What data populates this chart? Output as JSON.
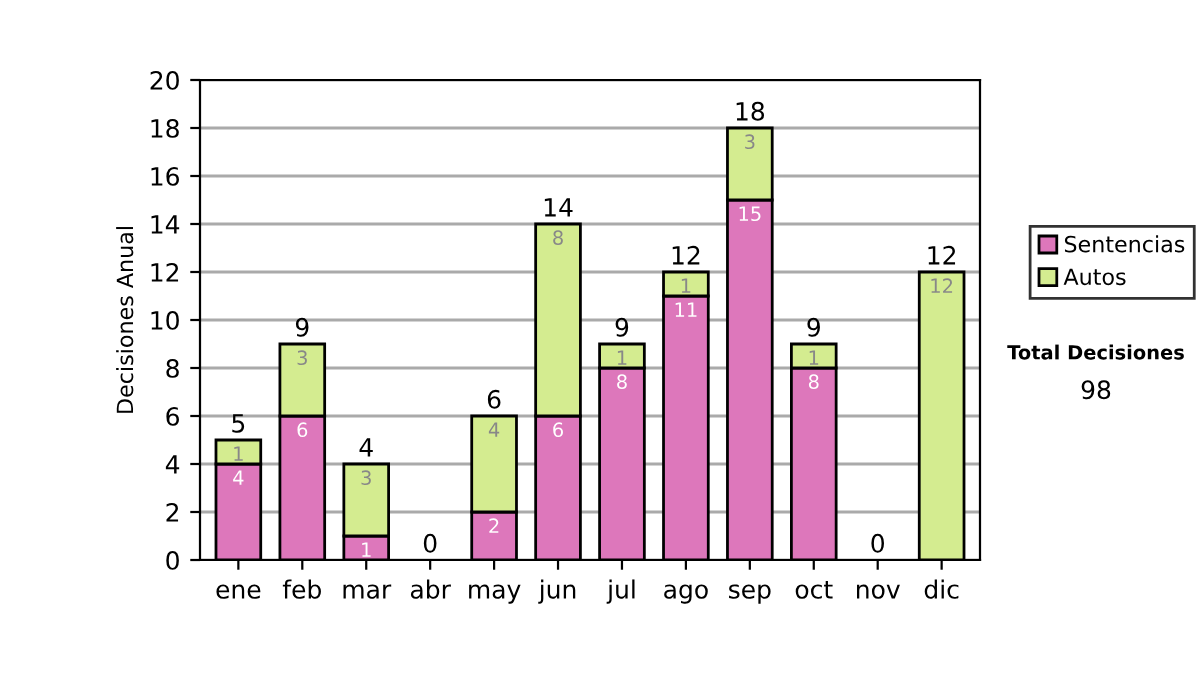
{
  "chart_data": {
    "type": "bar",
    "stacked": true,
    "ylabel": "Decisiones Anual",
    "categories": [
      "ene",
      "feb",
      "mar",
      "abr",
      "may",
      "jun",
      "jul",
      "ago",
      "sep",
      "oct",
      "nov",
      "dic"
    ],
    "series": [
      {
        "name": "Sentencias",
        "color": "#dd77bb",
        "values": [
          4,
          6,
          1,
          0,
          2,
          6,
          8,
          11,
          15,
          8,
          0,
          0
        ],
        "value_labels": [
          "4",
          "6",
          "1",
          null,
          "2",
          "6",
          "8",
          "11",
          "15",
          "8",
          null,
          null
        ]
      },
      {
        "name": "Autos",
        "color": "#d4ec90",
        "values": [
          1,
          3,
          3,
          0,
          4,
          8,
          1,
          1,
          3,
          1,
          0,
          12
        ],
        "value_labels": [
          "1",
          "3",
          "3",
          null,
          "4",
          "8",
          "1",
          "1",
          "3",
          "1",
          null,
          "12"
        ]
      }
    ],
    "totals": [
      "5",
      "9",
      "4",
      "0",
      "6",
      "14",
      "9",
      "12",
      "18",
      "9",
      "0",
      "12"
    ],
    "ylim": [
      0,
      20
    ],
    "yticks": [
      0,
      2,
      4,
      6,
      8,
      10,
      12,
      14,
      16,
      18,
      20
    ],
    "grid": "y",
    "legend": "right",
    "annotations": [
      "Total Decisiones",
      "98"
    ]
  }
}
